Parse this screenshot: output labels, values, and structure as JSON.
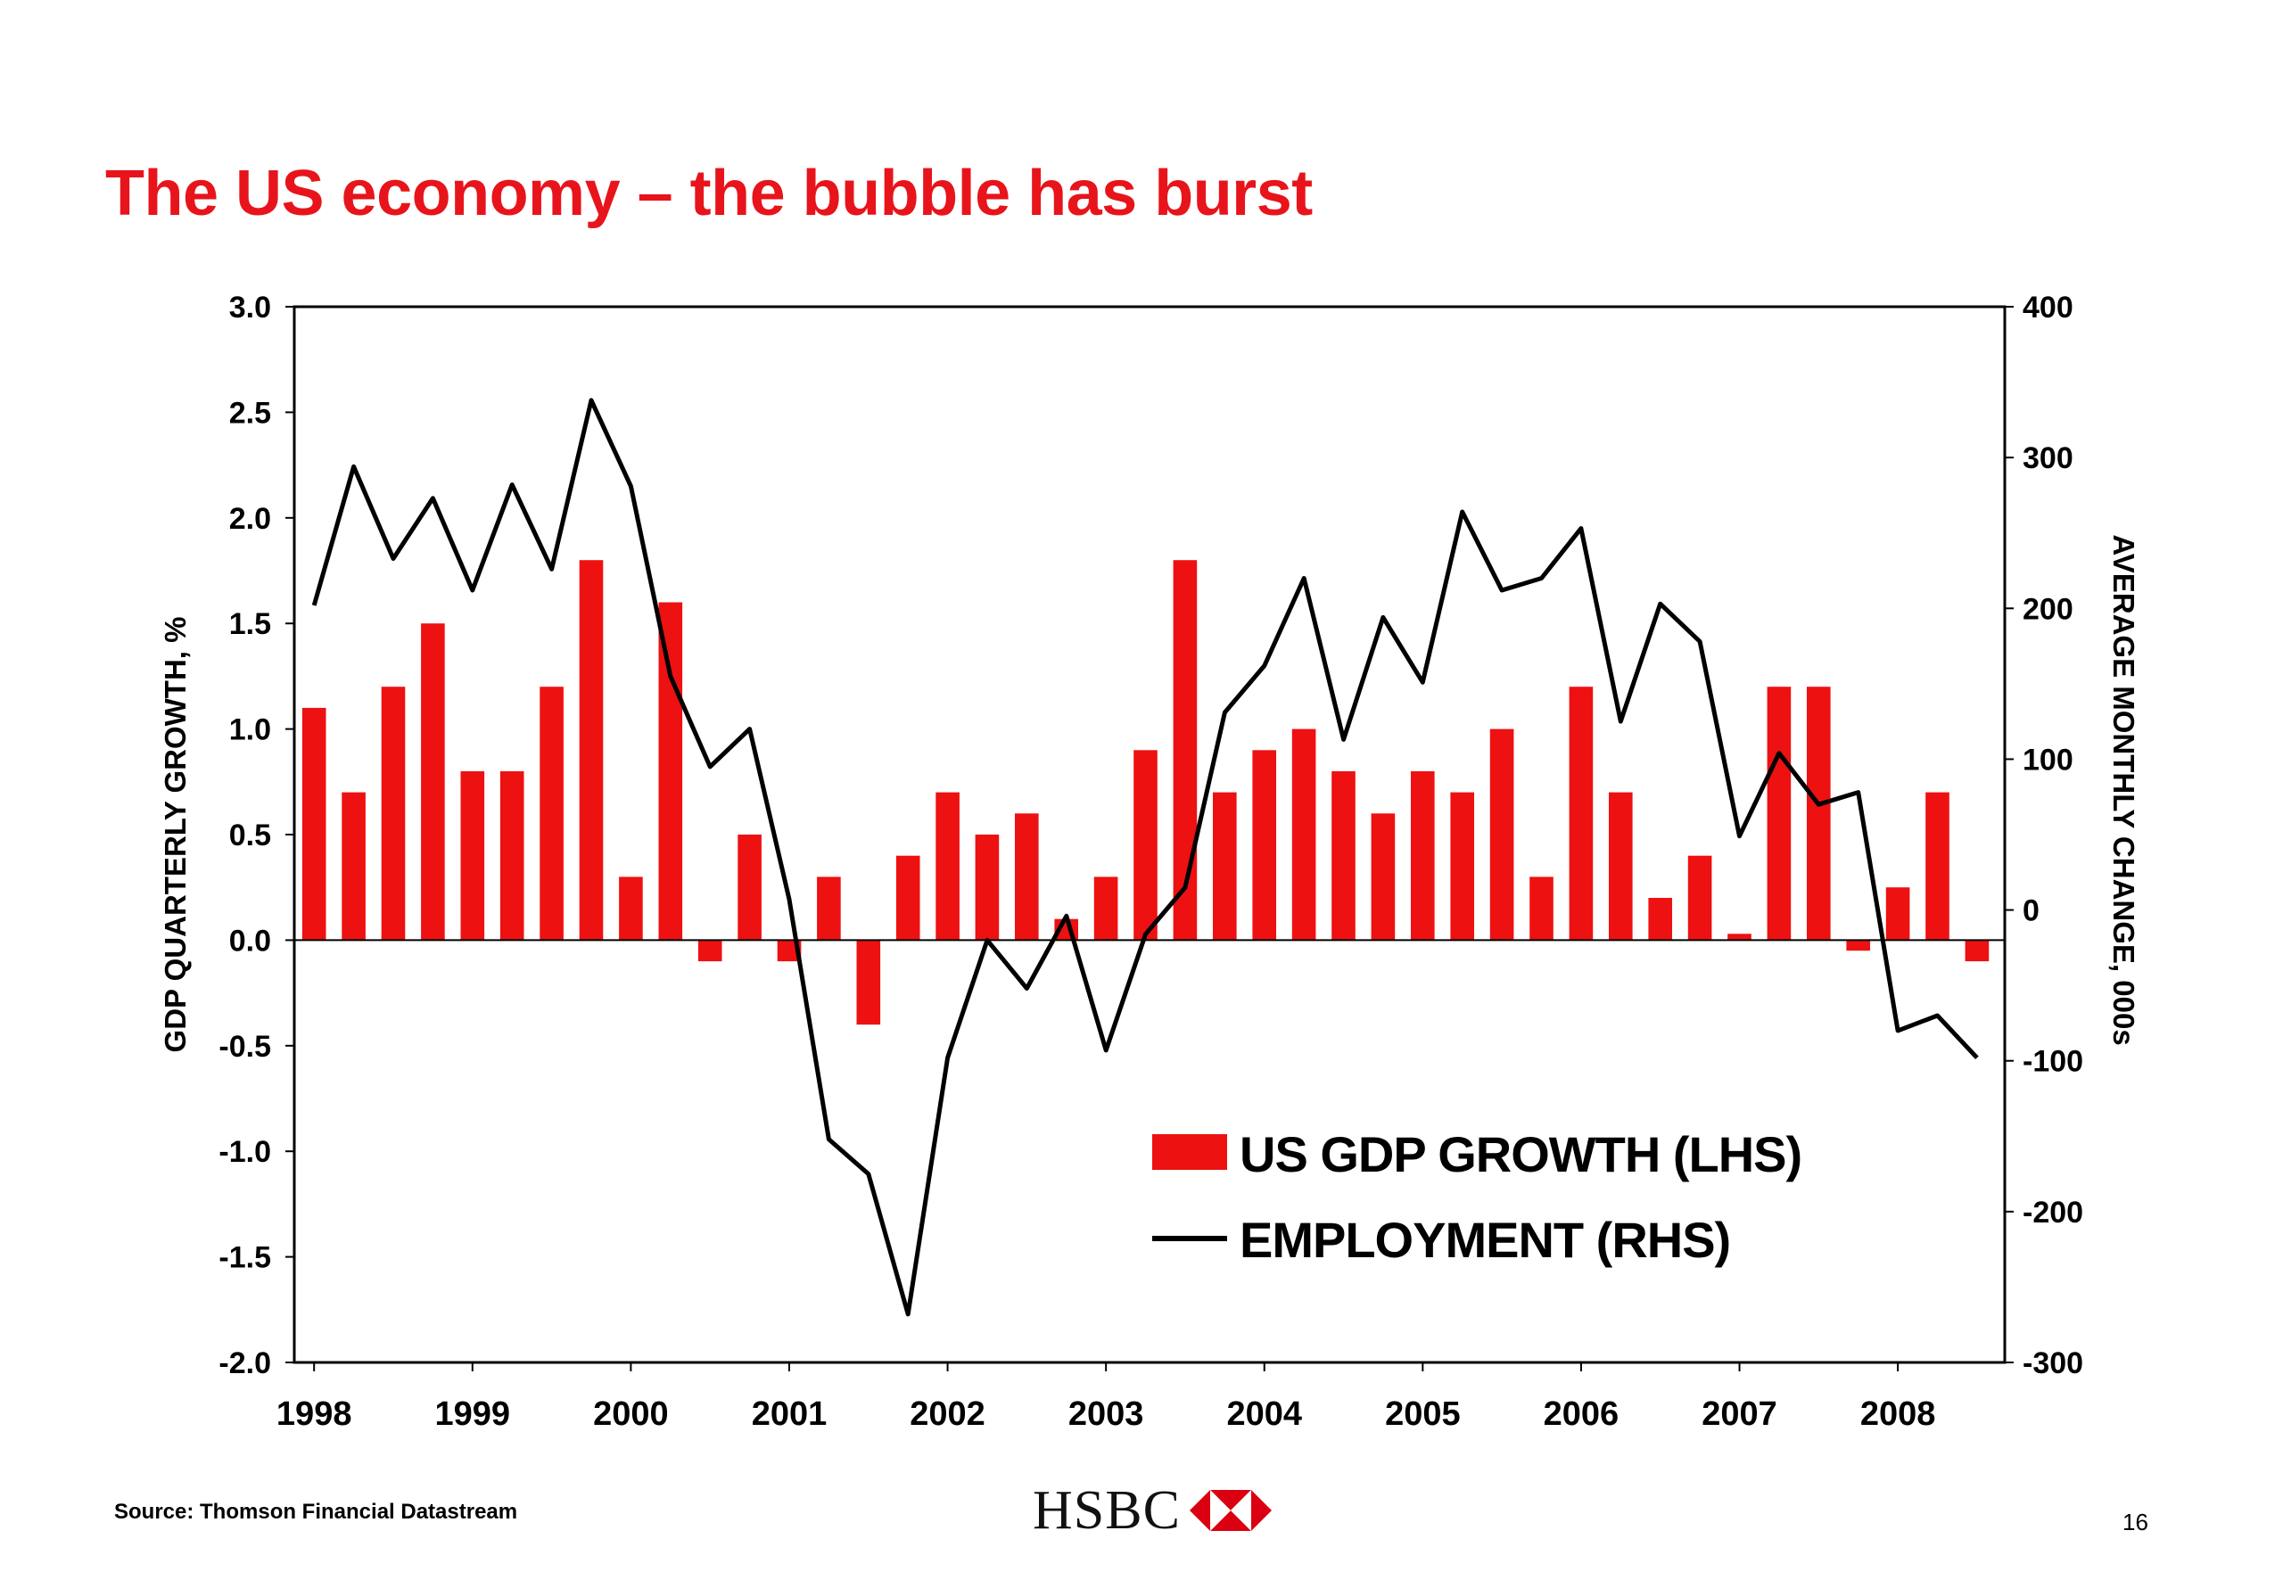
{
  "slide": {
    "title": "The US economy – the bubble has burst",
    "source": "Source: Thomson Financial Datastream",
    "logo_text": "HSBC",
    "page_number": "16"
  },
  "colors": {
    "title": "#e8141b",
    "bar": "#ee1111",
    "line": "#000000",
    "logo_red": "#db0011"
  },
  "chart_data": {
    "type": "bar+line",
    "x_tick_labels": [
      "1998",
      "1999",
      "2000",
      "2001",
      "2002",
      "2003",
      "2004",
      "2005",
      "2006",
      "2007",
      "2008"
    ],
    "ylabel_left": "GDP QUARTERLY GROWTH, %",
    "ylabel_right": "AVERAGE MONTHLY CHANGE, 000s",
    "ylim_left": [
      -2.0,
      3.0
    ],
    "yticks_left": [
      "3.0",
      "2.5",
      "2.0",
      "1.5",
      "1.0",
      "0.5",
      "0.0",
      "-0.5",
      "-1.0",
      "-1.5",
      "-2.0"
    ],
    "ylim_right": [
      -300,
      400
    ],
    "yticks_right": [
      "400",
      "300",
      "200",
      "100",
      "0",
      "-100",
      "-200",
      "-300"
    ],
    "legend_position": "lower-right",
    "series": [
      {
        "name": "US GDP GROWTH (LHS)",
        "kind": "bar",
        "axis": "left",
        "quarters": [
          "1998Q1",
          "1998Q2",
          "1998Q3",
          "1998Q4",
          "1999Q1",
          "1999Q2",
          "1999Q3",
          "1999Q4",
          "2000Q1",
          "2000Q2",
          "2000Q3",
          "2000Q4",
          "2001Q1",
          "2001Q2",
          "2001Q3",
          "2001Q4",
          "2002Q1",
          "2002Q2",
          "2002Q3",
          "2002Q4",
          "2003Q1",
          "2003Q2",
          "2003Q3",
          "2003Q4",
          "2004Q1",
          "2004Q2",
          "2004Q3",
          "2004Q4",
          "2005Q1",
          "2005Q2",
          "2005Q3",
          "2005Q4",
          "2006Q1",
          "2006Q2",
          "2006Q3",
          "2006Q4",
          "2007Q1",
          "2007Q2",
          "2007Q3",
          "2007Q4",
          "2008Q1",
          "2008Q2",
          "2008Q3"
        ],
        "values": [
          1.1,
          0.7,
          1.2,
          1.5,
          0.8,
          0.8,
          1.2,
          1.8,
          0.3,
          1.6,
          -0.1,
          0.5,
          -0.1,
          0.3,
          -0.4,
          0.4,
          0.7,
          0.5,
          0.6,
          0.1,
          0.3,
          0.9,
          1.8,
          0.7,
          0.9,
          1.0,
          0.8,
          0.6,
          0.8,
          0.7,
          1.0,
          0.3,
          1.2,
          0.7,
          0.2,
          0.4,
          0.03,
          1.2,
          1.2,
          -0.05,
          0.25,
          0.7,
          -0.1
        ]
      },
      {
        "name": "EMPLOYMENT (RHS)",
        "kind": "line",
        "axis": "right",
        "quarters": [
          "1998Q1",
          "1998Q2",
          "1998Q3",
          "1998Q4",
          "1999Q1",
          "1999Q2",
          "1999Q3",
          "1999Q4",
          "2000Q1",
          "2000Q2",
          "2000Q3",
          "2000Q4",
          "2001Q1",
          "2001Q2",
          "2001Q3",
          "2001Q4",
          "2002Q1",
          "2002Q2",
          "2002Q3",
          "2002Q4",
          "2003Q1",
          "2003Q2",
          "2003Q3",
          "2003Q4",
          "2004Q1",
          "2004Q2",
          "2004Q3",
          "2004Q4",
          "2005Q1",
          "2005Q2",
          "2005Q3",
          "2005Q4",
          "2006Q1",
          "2006Q2",
          "2006Q3",
          "2006Q4",
          "2007Q1",
          "2007Q2",
          "2007Q3",
          "2007Q4",
          "2008Q1",
          "2008Q2",
          "2008Q3"
        ],
        "values": [
          202,
          294,
          233,
          273,
          212,
          282,
          226,
          338,
          281,
          155,
          95,
          120,
          7,
          -152,
          -175,
          -268,
          -98,
          -20,
          -52,
          -4,
          -93,
          -16,
          15,
          131,
          162,
          220,
          113,
          194,
          151,
          264,
          212,
          220,
          253,
          125,
          203,
          178,
          49,
          104,
          70,
          78,
          -80,
          -70,
          -98
        ]
      }
    ]
  }
}
